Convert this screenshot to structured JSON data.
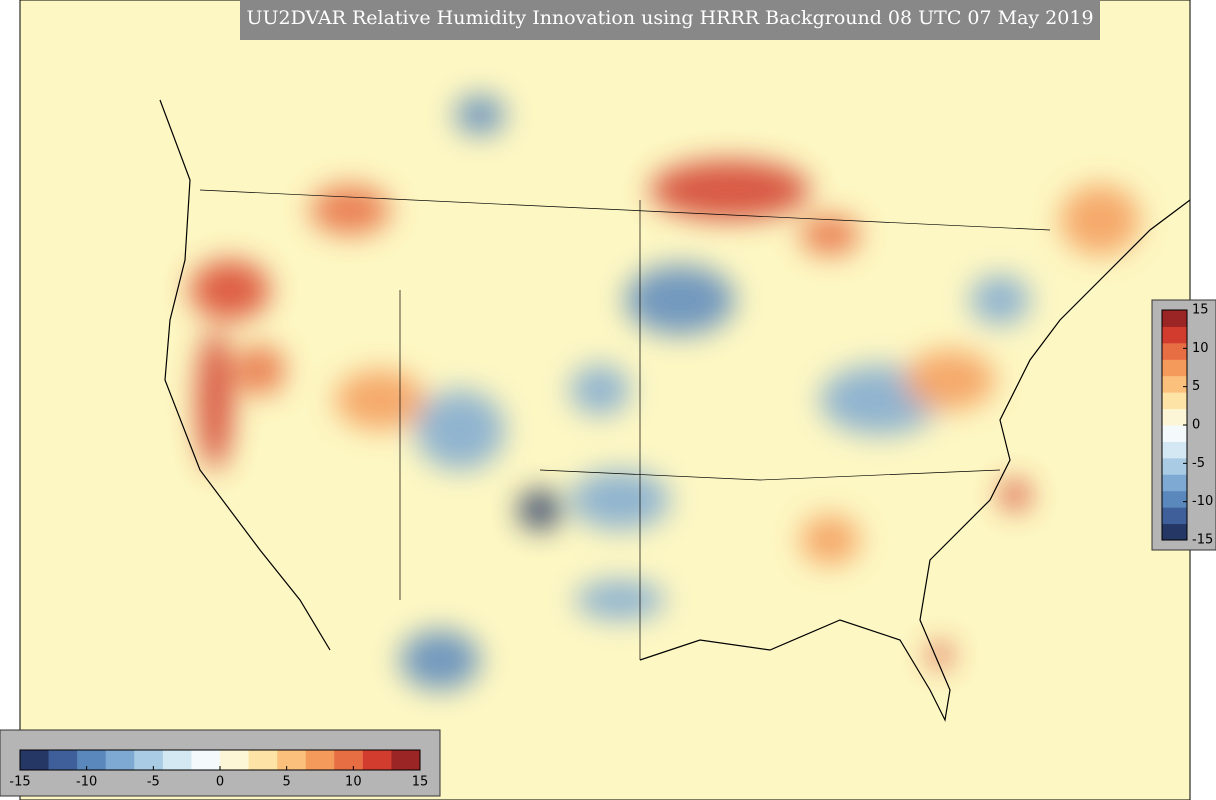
{
  "title": "UU2DVAR Relative Humidity Innovation using HRRR Background 08 UTC 07 May 2019",
  "colorbar": {
    "lim": [
      -15,
      15
    ],
    "ticks": [
      -15,
      -10,
      -5,
      0,
      5,
      10,
      15
    ],
    "colors": [
      "#253765",
      "#3f5f9a",
      "#5a88bd",
      "#7ea9d2",
      "#a9cbe4",
      "#d3e8f2",
      "#f4fafb",
      "#fdf6d6",
      "#fde3a6",
      "#fbc17c",
      "#f49b5c",
      "#e76d43",
      "#d23c2f",
      "#9b2424"
    ]
  }
}
